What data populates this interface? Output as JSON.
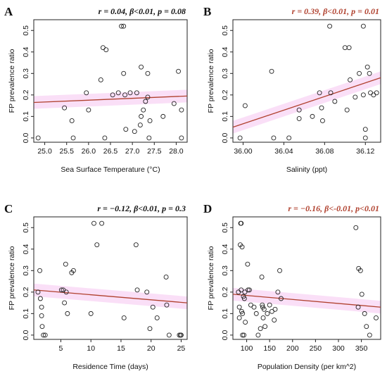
{
  "chart_data": [
    {
      "type": "scatter",
      "panel": "A",
      "stat": "r = 0.04, β<0.01, p = 0.08",
      "stat_color": "#111111",
      "title": "",
      "xlabel": "Sea Surface Temperature (°C)",
      "ylabel": "FP prevalence ratio",
      "xlim": [
        24.75,
        28.25
      ],
      "ylim": [
        -0.02,
        0.55
      ],
      "xticks": [
        25.0,
        25.5,
        26.0,
        26.5,
        27.0,
        27.5,
        28.0
      ],
      "xtick_labels": [
        "25.0",
        "25.5",
        "26.0",
        "26.5",
        "27.0",
        "27.5",
        "28.0"
      ],
      "yticks": [
        0.0,
        0.1,
        0.2,
        0.3,
        0.4,
        0.5
      ],
      "ytick_labels": [
        "0.0",
        "0.1",
        "0.2",
        "0.3",
        "0.4",
        "0.5"
      ],
      "points": [
        [
          24.85,
          0.0
        ],
        [
          25.45,
          0.14
        ],
        [
          25.62,
          0.08
        ],
        [
          25.65,
          0.0
        ],
        [
          25.95,
          0.21
        ],
        [
          26.0,
          0.13
        ],
        [
          26.28,
          0.27
        ],
        [
          26.33,
          0.42
        ],
        [
          26.37,
          0.0
        ],
        [
          26.4,
          0.41
        ],
        [
          26.55,
          0.2
        ],
        [
          26.68,
          0.21
        ],
        [
          26.75,
          0.52
        ],
        [
          26.8,
          0.52
        ],
        [
          26.8,
          0.3
        ],
        [
          26.83,
          0.2
        ],
        [
          26.85,
          0.04
        ],
        [
          26.95,
          0.21
        ],
        [
          27.05,
          0.03
        ],
        [
          27.1,
          0.21
        ],
        [
          27.18,
          0.06
        ],
        [
          27.2,
          0.1
        ],
        [
          27.25,
          0.13
        ],
        [
          27.2,
          0.33
        ],
        [
          27.3,
          0.17
        ],
        [
          27.35,
          0.3
        ],
        [
          27.35,
          0.19
        ],
        [
          27.38,
          0.0
        ],
        [
          27.4,
          0.08
        ],
        [
          27.7,
          0.1
        ],
        [
          27.95,
          0.16
        ],
        [
          28.05,
          0.31
        ],
        [
          28.12,
          0.13
        ],
        [
          28.12,
          0.0
        ]
      ],
      "fit": {
        "x": [
          24.75,
          28.25
        ],
        "y": [
          0.165,
          0.195
        ]
      },
      "fit_color": "#b0412e",
      "band_color": "#f4b8ee"
    },
    {
      "type": "scatter",
      "panel": "B",
      "stat": "r = 0.39, β<0.01, p = 0.01",
      "stat_color": "#b0412e",
      "title": "",
      "xlabel": "Salinity (ppt)",
      "ylabel": "FP prevalence ratio",
      "xlim": [
        35.99,
        36.135
      ],
      "ylim": [
        -0.02,
        0.55
      ],
      "xticks": [
        36.0,
        36.04,
        36.08,
        36.12
      ],
      "xtick_labels": [
        "36.00",
        "36.04",
        "36.08",
        "36.12"
      ],
      "yticks": [
        0.0,
        0.1,
        0.2,
        0.3,
        0.4,
        0.5
      ],
      "ytick_labels": [
        "0.0",
        "0.1",
        "0.2",
        "0.3",
        "0.4",
        "0.5"
      ],
      "points": [
        [
          35.997,
          0.0
        ],
        [
          36.002,
          0.15
        ],
        [
          36.028,
          0.31
        ],
        [
          36.03,
          0.0
        ],
        [
          36.045,
          0.0
        ],
        [
          36.055,
          0.13
        ],
        [
          36.055,
          0.09
        ],
        [
          36.068,
          0.1
        ],
        [
          36.075,
          0.21
        ],
        [
          36.077,
          0.14
        ],
        [
          36.078,
          0.08
        ],
        [
          36.085,
          0.52
        ],
        [
          36.086,
          0.21
        ],
        [
          36.09,
          0.17
        ],
        [
          36.1,
          0.42
        ],
        [
          36.102,
          0.13
        ],
        [
          36.104,
          0.42
        ],
        [
          36.105,
          0.27
        ],
        [
          36.11,
          0.19
        ],
        [
          36.114,
          0.3
        ],
        [
          36.118,
          0.52
        ],
        [
          36.118,
          0.2
        ],
        [
          36.12,
          0.04
        ],
        [
          36.12,
          0.0
        ],
        [
          36.122,
          0.33
        ],
        [
          36.124,
          0.3
        ],
        [
          36.125,
          0.21
        ],
        [
          36.128,
          0.2
        ],
        [
          36.131,
          0.21
        ]
      ],
      "fit": {
        "x": [
          35.99,
          36.135
        ],
        "y": [
          0.05,
          0.28
        ]
      },
      "fit_color": "#b0412e",
      "band_color": "#f4b8ee"
    },
    {
      "type": "scatter",
      "panel": "C",
      "stat": "r = −0.12, β<0.01, p = 0.3",
      "stat_color": "#111111",
      "title": "",
      "xlabel": "Residence Time (days)",
      "ylabel": "FP prevalence ratio",
      "xlim": [
        0.5,
        26.0
      ],
      "ylim": [
        -0.02,
        0.55
      ],
      "xticks": [
        5,
        10,
        15,
        20,
        25
      ],
      "xtick_labels": [
        "5",
        "10",
        "15",
        "20",
        "25"
      ],
      "yticks": [
        0.0,
        0.1,
        0.2,
        0.3,
        0.4,
        0.5
      ],
      "ytick_labels": [
        "0.0",
        "0.1",
        "0.2",
        "0.3",
        "0.4",
        "0.5"
      ],
      "points": [
        [
          1.2,
          0.2
        ],
        [
          1.5,
          0.3
        ],
        [
          1.6,
          0.17
        ],
        [
          1.8,
          0.13
        ],
        [
          1.8,
          0.09
        ],
        [
          1.9,
          0.04
        ],
        [
          2.1,
          0.0
        ],
        [
          2.4,
          0.0
        ],
        [
          5.1,
          0.21
        ],
        [
          5.4,
          0.21
        ],
        [
          5.6,
          0.15
        ],
        [
          5.9,
          0.2
        ],
        [
          5.8,
          0.33
        ],
        [
          6.1,
          0.1
        ],
        [
          6.8,
          0.29
        ],
        [
          7.1,
          0.3
        ],
        [
          10.0,
          0.1
        ],
        [
          10.5,
          0.52
        ],
        [
          11.0,
          0.42
        ],
        [
          11.8,
          0.52
        ],
        [
          15.5,
          0.08
        ],
        [
          17.5,
          0.42
        ],
        [
          17.7,
          0.21
        ],
        [
          19.3,
          0.2
        ],
        [
          19.8,
          0.03
        ],
        [
          20.3,
          0.13
        ],
        [
          21.0,
          0.08
        ],
        [
          22.5,
          0.27
        ],
        [
          22.6,
          0.14
        ],
        [
          23.0,
          0.0
        ],
        [
          24.7,
          0.0
        ],
        [
          24.9,
          0.0
        ],
        [
          25.0,
          0.0
        ]
      ],
      "fit": {
        "x": [
          0.5,
          26.0
        ],
        "y": [
          0.21,
          0.15
        ]
      },
      "fit_color": "#b0412e",
      "band_color": "#f4b8ee"
    },
    {
      "type": "scatter",
      "panel": "D",
      "stat": "r = −0.16, β<-0.01, p<0.01",
      "stat_color": "#b0412e",
      "title": "",
      "xlabel": "Population Density (per km^2)",
      "ylabel": "FP prevalence ratio",
      "xlim": [
        70,
        392
      ],
      "ylim": [
        -0.02,
        0.55
      ],
      "xticks": [
        100,
        150,
        200,
        250,
        300,
        350
      ],
      "xtick_labels": [
        "100",
        "150",
        "200",
        "250",
        "300",
        "350"
      ],
      "yticks": [
        0.0,
        0.1,
        0.2,
        0.3,
        0.4,
        0.5
      ],
      "ytick_labels": [
        "0.0",
        "0.1",
        "0.2",
        "0.3",
        "0.4",
        "0.5"
      ],
      "points": [
        [
          82,
          0.2
        ],
        [
          84,
          0.13
        ],
        [
          84,
          0.08
        ],
        [
          86,
          0.42
        ],
        [
          87,
          0.52
        ],
        [
          88,
          0.52
        ],
        [
          88,
          0.21
        ],
        [
          89,
          0.11
        ],
        [
          90,
          0.41
        ],
        [
          91,
          0.1
        ],
        [
          91,
          0.0
        ],
        [
          93,
          0.18
        ],
        [
          94,
          0.0
        ],
        [
          95,
          0.17
        ],
        [
          96,
          0.2
        ],
        [
          97,
          0.06
        ],
        [
          102,
          0.33
        ],
        [
          103,
          0.21
        ],
        [
          106,
          0.21
        ],
        [
          109,
          0.14
        ],
        [
          116,
          0.13
        ],
        [
          121,
          0.1
        ],
        [
          125,
          0.0
        ],
        [
          130,
          0.03
        ],
        [
          133,
          0.27
        ],
        [
          134,
          0.14
        ],
        [
          135,
          0.13
        ],
        [
          136,
          0.08
        ],
        [
          138,
          0.12
        ],
        [
          140,
          0.04
        ],
        [
          145,
          0.1
        ],
        [
          150,
          0.14
        ],
        [
          155,
          0.11
        ],
        [
          160,
          0.07
        ],
        [
          162,
          0.12
        ],
        [
          168,
          0.2
        ],
        [
          172,
          0.3
        ],
        [
          175,
          0.17
        ],
        [
          338,
          0.5
        ],
        [
          343,
          0.13
        ],
        [
          344,
          0.31
        ],
        [
          348,
          0.3
        ],
        [
          351,
          0.19
        ],
        [
          357,
          0.1
        ],
        [
          361,
          0.04
        ],
        [
          368,
          0.0
        ],
        [
          382,
          0.08
        ]
      ],
      "fit": {
        "x": [
          70,
          392
        ],
        "y": [
          0.19,
          0.13
        ]
      },
      "fit_color": "#b0412e",
      "band_color": "#f4b8ee"
    }
  ]
}
